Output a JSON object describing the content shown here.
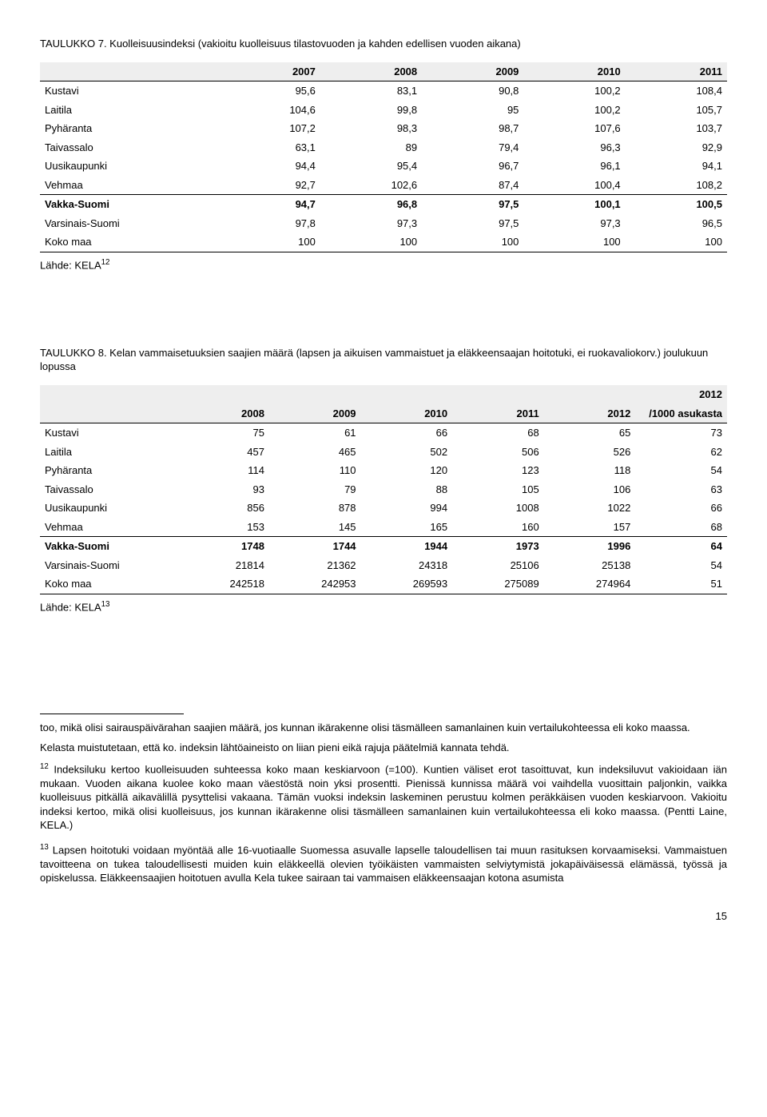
{
  "table7": {
    "caption": "TAULUKKO 7. Kuolleisuusindeksi (vakioitu kuolleisuus tilastovuoden ja kahden edellisen vuoden aikana)",
    "columns": [
      "",
      "2007",
      "2008",
      "2009",
      "2010",
      "2011"
    ],
    "rows": [
      {
        "label": "Kustavi",
        "vals": [
          "95,6",
          "83,1",
          "90,8",
          "100,2",
          "108,4"
        ],
        "bold": false
      },
      {
        "label": "Laitila",
        "vals": [
          "104,6",
          "99,8",
          "95",
          "100,2",
          "105,7"
        ],
        "bold": false
      },
      {
        "label": "Pyhäranta",
        "vals": [
          "107,2",
          "98,3",
          "98,7",
          "107,6",
          "103,7"
        ],
        "bold": false
      },
      {
        "label": "Taivassalo",
        "vals": [
          "63,1",
          "89",
          "79,4",
          "96,3",
          "92,9"
        ],
        "bold": false
      },
      {
        "label": "Uusikaupunki",
        "vals": [
          "94,4",
          "95,4",
          "96,7",
          "96,1",
          "94,1"
        ],
        "bold": false
      },
      {
        "label": "Vehmaa",
        "vals": [
          "92,7",
          "102,6",
          "87,4",
          "100,4",
          "108,2"
        ],
        "bold": false
      },
      {
        "label": "Vakka-Suomi",
        "vals": [
          "94,7",
          "96,8",
          "97,5",
          "100,1",
          "100,5"
        ],
        "bold": true,
        "topBorder": true
      },
      {
        "label": "Varsinais-Suomi",
        "vals": [
          "97,8",
          "97,3",
          "97,5",
          "97,3",
          "96,5"
        ],
        "bold": false
      },
      {
        "label": "Koko maa",
        "vals": [
          "100",
          "100",
          "100",
          "100",
          "100"
        ],
        "bold": false,
        "bottomBorder": true
      }
    ],
    "source_html": "Lähde: KELA<sup>12</sup>"
  },
  "table8": {
    "caption": "TAULUKKO 8. Kelan vammaisetuuksien saajien määrä (lapsen ja aikuisen vammaistuet ja eläkkeensaajan hoitotuki, ei ruokavaliokorv.) joulukuun lopussa",
    "superheader": "2012",
    "columns": [
      "",
      "2008",
      "2009",
      "2010",
      "2011",
      "2012",
      "/1000 asukasta"
    ],
    "rows": [
      {
        "label": "Kustavi",
        "vals": [
          "75",
          "61",
          "66",
          "68",
          "65",
          "73"
        ],
        "bold": false
      },
      {
        "label": "Laitila",
        "vals": [
          "457",
          "465",
          "502",
          "506",
          "526",
          "62"
        ],
        "bold": false
      },
      {
        "label": "Pyhäranta",
        "vals": [
          "114",
          "110",
          "120",
          "123",
          "118",
          "54"
        ],
        "bold": false
      },
      {
        "label": "Taivassalo",
        "vals": [
          "93",
          "79",
          "88",
          "105",
          "106",
          "63"
        ],
        "bold": false
      },
      {
        "label": "Uusikaupunki",
        "vals": [
          "856",
          "878",
          "994",
          "1008",
          "1022",
          "66"
        ],
        "bold": false
      },
      {
        "label": "Vehmaa",
        "vals": [
          "153",
          "145",
          "165",
          "160",
          "157",
          "68"
        ],
        "bold": false
      },
      {
        "label": "Vakka-Suomi",
        "vals": [
          "1748",
          "1744",
          "1944",
          "1973",
          "1996",
          "64"
        ],
        "bold": true,
        "topBorder": true
      },
      {
        "label": "Varsinais-Suomi",
        "vals": [
          "21814",
          "21362",
          "24318",
          "25106",
          "25138",
          "54"
        ],
        "bold": false
      },
      {
        "label": "Koko maa",
        "vals": [
          "242518",
          "242953",
          "269593",
          "275089",
          "274964",
          "51"
        ],
        "bold": false,
        "bottomBorder": true
      }
    ],
    "source_html": "Lähde: KELA<sup>13</sup>"
  },
  "body": {
    "p1": "too, mikä olisi sairauspäivärahan saajien määrä, jos kunnan ikärakenne olisi täsmälleen samanlainen kuin vertailukohteessa eli koko maassa.",
    "p2": "Kelasta muistutetaan, että ko. indeksin lähtöaineisto on liian pieni eikä rajuja päätelmiä kannata tehdä.",
    "fn12_html": "<sup>12</sup> Indeksiluku kertoo kuolleisuuden suhteessa koko maan keskiarvoon (=100). Kuntien väliset erot tasoittuvat, kun indeksiluvut vakioidaan iän mukaan. Vuoden aikana kuolee koko maan väestöstä noin yksi prosentti. Pienissä kunnissa määrä voi vaihdella vuosittain paljonkin, vaikka kuolleisuus pitkällä aikavälillä pysyttelisi vakaana. Tämän vuoksi indeksin laskeminen perustuu kolmen peräkkäisen vuoden keskiarvoon. Vakioitu indeksi kertoo, mikä olisi kuolleisuus, jos kunnan ikärakenne olisi täsmälleen samanlainen kuin vertailukohteessa eli koko maassa. (Pentti Laine, KELA.)",
    "fn13_html": "<sup>13</sup> Lapsen hoitotuki voidaan myöntää alle 16-vuotiaalle Suomessa asuvalle lapselle taloudellisen tai muun rasituksen korvaamiseksi. Vammaistuen tavoitteena on tukea taloudellisesti muiden kuin eläkkeellä olevien työikäisten vammaisten selviytymistä jokapäiväisessä elämässä, työssä ja opiskelussa. Eläkkeensaajien hoitotuen avulla Kela tukee sairaan tai vammaisen eläkkeensaajan kotona asumista"
  },
  "pageNumber": "15"
}
